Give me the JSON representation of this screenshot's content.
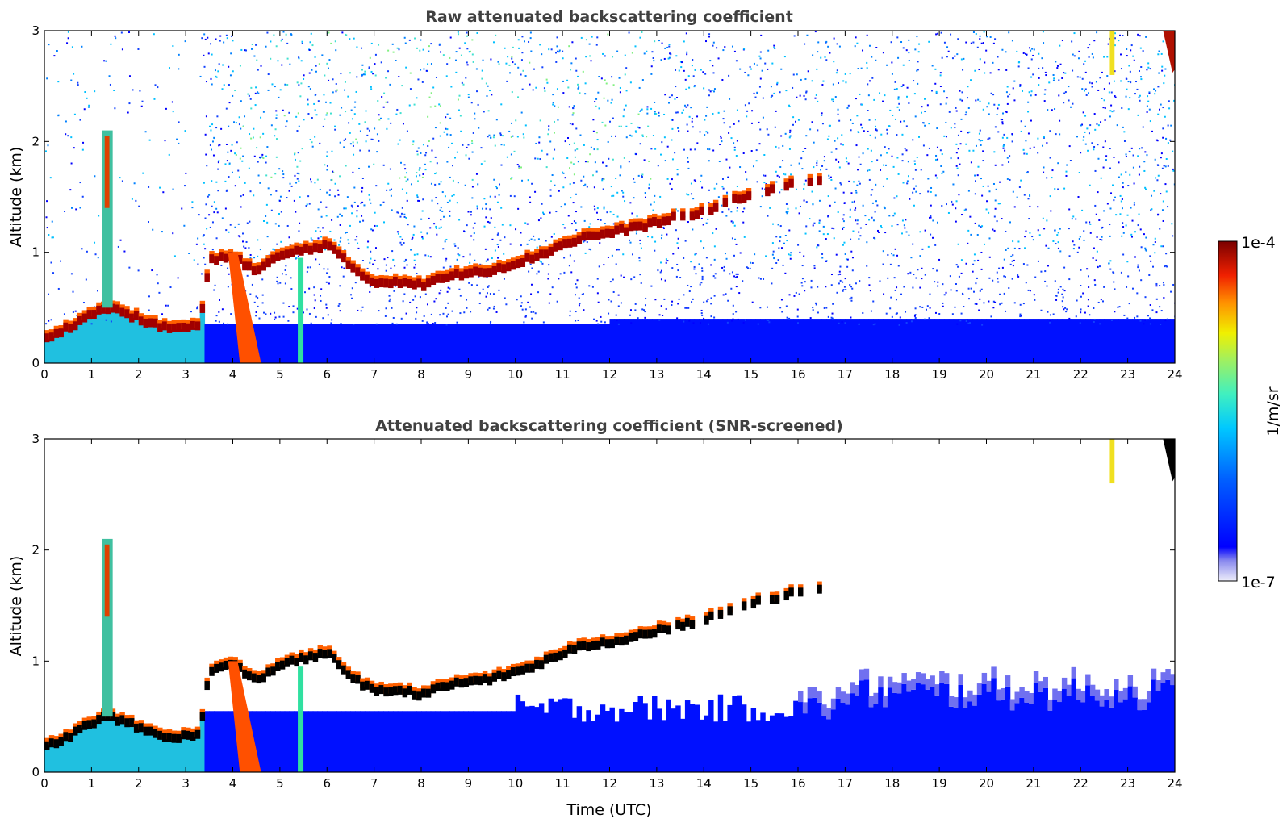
{
  "chart_data": [
    {
      "type": "heatmap",
      "title": "Raw attenuated backscattering coefficient",
      "xlabel": "",
      "ylabel": "Altitude (km)",
      "xlim": [
        0,
        24
      ],
      "ylim": [
        0,
        3
      ],
      "x_ticks": [
        "0",
        "1",
        "2",
        "3",
        "4",
        "5",
        "6",
        "7",
        "8",
        "9",
        "10",
        "11",
        "12",
        "13",
        "14",
        "15",
        "16",
        "17",
        "18",
        "19",
        "20",
        "21",
        "22",
        "23",
        "24"
      ],
      "y_ticks": [
        "0",
        "1",
        "2",
        "3"
      ],
      "screened": false,
      "cloud_layer": {
        "time_utc": [
          0,
          0.5,
          1,
          1.3,
          1.6,
          2,
          2.5,
          3,
          3.3,
          3.5,
          4,
          4.5,
          5,
          5.5,
          6,
          6.5,
          7,
          7.5,
          8,
          8.5,
          9,
          9.5,
          10,
          10.5,
          11,
          11.5,
          12,
          12.5,
          13,
          13.5,
          14,
          14.5,
          15,
          15.5,
          16,
          16.5
        ],
        "altitude_km": [
          0.2,
          0.3,
          0.42,
          0.48,
          0.45,
          0.38,
          0.3,
          0.3,
          0.32,
          0.9,
          0.95,
          0.8,
          0.95,
          1.0,
          1.05,
          0.85,
          0.7,
          0.72,
          0.68,
          0.75,
          0.8,
          0.82,
          0.88,
          0.95,
          1.05,
          1.12,
          1.15,
          1.2,
          1.25,
          1.3,
          1.35,
          1.42,
          1.5,
          1.55,
          1.6,
          1.62
        ]
      },
      "high_cloud": {
        "time_utc": [
          23.8,
          24
        ],
        "altitude_km": [
          2.7,
          3.0
        ]
      }
    },
    {
      "type": "heatmap",
      "title": "Attenuated backscattering coefficient (SNR-screened)",
      "xlabel": "Time (UTC)",
      "ylabel": "Altitude (km)",
      "xlim": [
        0,
        24
      ],
      "ylim": [
        0,
        3
      ],
      "x_ticks": [
        "0",
        "1",
        "2",
        "3",
        "4",
        "5",
        "6",
        "7",
        "8",
        "9",
        "10",
        "11",
        "12",
        "13",
        "14",
        "15",
        "16",
        "17",
        "18",
        "19",
        "20",
        "21",
        "22",
        "23",
        "24"
      ],
      "y_ticks": [
        "0",
        "1",
        "2",
        "3"
      ],
      "screened": true,
      "cloud_layer": {
        "time_utc": [
          0,
          0.5,
          1,
          1.3,
          1.6,
          2,
          2.5,
          3,
          3.3,
          3.5,
          4,
          4.5,
          5,
          5.5,
          6,
          6.5,
          7,
          7.5,
          8,
          8.5,
          9,
          9.5,
          10,
          10.5,
          11,
          11.5,
          12,
          12.5,
          13,
          13.5,
          14,
          14.5,
          15,
          15.5,
          16,
          16.5
        ],
        "altitude_km": [
          0.2,
          0.3,
          0.42,
          0.48,
          0.45,
          0.38,
          0.3,
          0.3,
          0.32,
          0.9,
          0.95,
          0.8,
          0.95,
          1.0,
          1.05,
          0.85,
          0.7,
          0.72,
          0.68,
          0.75,
          0.8,
          0.82,
          0.88,
          0.95,
          1.05,
          1.12,
          1.15,
          1.2,
          1.25,
          1.3,
          1.35,
          1.42,
          1.5,
          1.55,
          1.6,
          1.62
        ]
      },
      "high_cloud": {
        "time_utc": [
          23.8,
          24
        ],
        "altitude_km": [
          2.7,
          3.0
        ]
      }
    }
  ],
  "colorbar": {
    "label": "1/m/sr",
    "max_label": "1e-4",
    "min_label": "1e-7",
    "colormap": [
      "#e6e6f5",
      "#8080ee",
      "#0000ff",
      "#0070ff",
      "#00c8ff",
      "#40f0c0",
      "#a0f060",
      "#f0f000",
      "#ff9000",
      "#f02000",
      "#b00000",
      "#7a0000"
    ]
  }
}
